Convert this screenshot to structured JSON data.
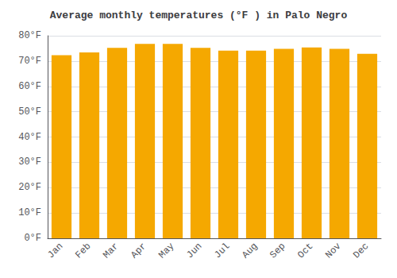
{
  "chart_data": {
    "type": "bar",
    "title": "Average monthly temperatures (°F ) in Palo Negro",
    "categories": [
      "Jan",
      "Feb",
      "Mar",
      "Apr",
      "May",
      "Jun",
      "Jul",
      "Aug",
      "Sep",
      "Oct",
      "Nov",
      "Dec"
    ],
    "values": [
      72.3,
      73.4,
      75.2,
      76.8,
      76.8,
      75.2,
      74.1,
      74.1,
      74.8,
      75.4,
      74.8,
      72.9
    ],
    "color": "#F5A800",
    "ylim": [
      0,
      80
    ],
    "yticks": [
      {
        "value": 0,
        "label": "0°F"
      },
      {
        "value": 10,
        "label": "10°F"
      },
      {
        "value": 20,
        "label": "20°F"
      },
      {
        "value": 30,
        "label": "30°F"
      },
      {
        "value": 40,
        "label": "40°F"
      },
      {
        "value": 50,
        "label": "50°F"
      },
      {
        "value": 60,
        "label": "60°F"
      },
      {
        "value": 70,
        "label": "70°F"
      },
      {
        "value": 80,
        "label": "80°F"
      }
    ],
    "grid": true
  }
}
